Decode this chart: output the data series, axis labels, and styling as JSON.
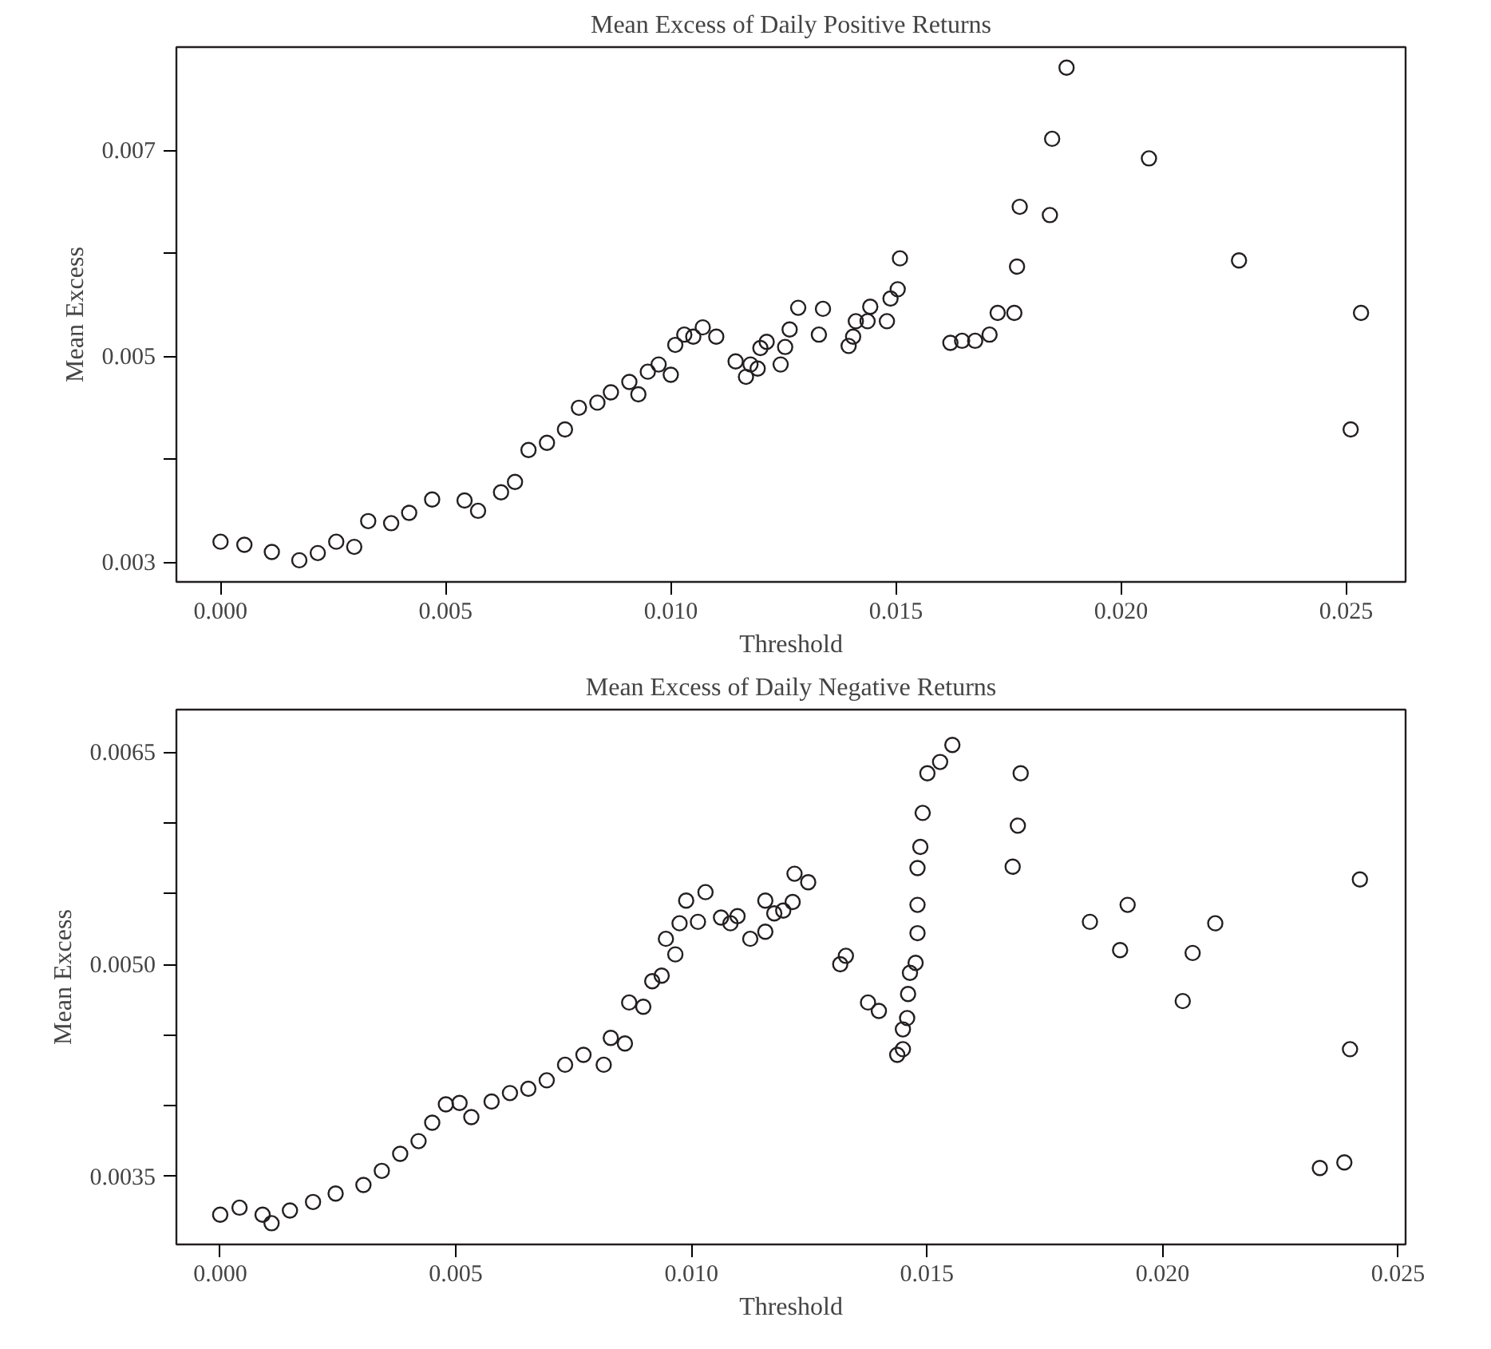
{
  "chart_data": [
    {
      "type": "scatter",
      "title": "Mean Excess of Daily Positive Returns",
      "xlabel": "Threshold",
      "ylabel": "Mean Excess",
      "marker": "circle",
      "grid": false,
      "color": "#231f20",
      "xlim": [
        -0.00098,
        0.02632
      ],
      "ylim": [
        0.00281,
        0.008
      ],
      "xticks": [
        {
          "value": 0,
          "label": "0.000"
        },
        0.005,
        {
          "value": 0.01,
          "label": "0.010"
        },
        0.015,
        {
          "value": 0.02,
          "label": "0.020"
        },
        0.025
      ],
      "yticks": [
        0.003,
        {
          "value": 0.004,
          "label": null
        },
        0.005,
        {
          "value": 0.006,
          "label": null
        },
        0.007
      ],
      "x": [
        0,
        0.00053,
        0.00114,
        0.00175,
        0.00216,
        0.00257,
        0.00297,
        0.00328,
        0.00379,
        0.00419,
        0.0047,
        0.00542,
        0.00572,
        0.00623,
        0.00654,
        0.00684,
        0.00725,
        0.00765,
        0.00796,
        0.00837,
        0.00867,
        0.00908,
        0.00928,
        0.00949,
        0.00973,
        0.01,
        0.0101,
        0.0103,
        0.0105,
        0.01071,
        0.01101,
        0.01144,
        0.01167,
        0.01177,
        0.01193,
        0.01199,
        0.01213,
        0.01244,
        0.01254,
        0.01264,
        0.01283,
        0.01329,
        0.01338,
        0.01395,
        0.01405,
        0.01411,
        0.01443,
        0.01437,
        0.0148,
        0.01488,
        0.01504,
        0.01509,
        0.01621,
        0.01647,
        0.01676,
        0.01708,
        0.01726,
        0.01763,
        0.01769,
        0.01775,
        0.01842,
        0.01847,
        0.01879,
        0.02062,
        0.02262,
        0.0251,
        0.02533
      ],
      "values": [
        0.0032,
        0.00317,
        0.0031,
        0.00302,
        0.00309,
        0.0032,
        0.00315,
        0.0034,
        0.00338,
        0.00348,
        0.00361,
        0.0036,
        0.0035,
        0.00368,
        0.00378,
        0.00409,
        0.00416,
        0.00429,
        0.0045,
        0.00455,
        0.00465,
        0.00475,
        0.00463,
        0.00485,
        0.00492,
        0.00482,
        0.00511,
        0.00521,
        0.00519,
        0.00528,
        0.00519,
        0.00495,
        0.0048,
        0.00492,
        0.00488,
        0.00508,
        0.00514,
        0.00492,
        0.00509,
        0.00526,
        0.00547,
        0.00521,
        0.00546,
        0.0051,
        0.00519,
        0.00534,
        0.00548,
        0.00534,
        0.00534,
        0.00556,
        0.00565,
        0.00595,
        0.00513,
        0.00515,
        0.00515,
        0.00521,
        0.00542,
        0.00542,
        0.00587,
        0.00645,
        0.00637,
        0.00711,
        0.0078,
        0.00692,
        0.00593,
        0.00429,
        0.00542
      ]
    },
    {
      "type": "scatter",
      "title": "Mean Excess of Daily Negative Returns",
      "xlabel": "Threshold",
      "ylabel": "Mean Excess",
      "marker": "circle",
      "grid": false,
      "color": "#231f20",
      "xlim": [
        -0.00093,
        0.02516
      ],
      "ylim": [
        0.00302,
        0.0068
      ],
      "xticks": [
        {
          "value": 0,
          "label": "0.000"
        },
        0.005,
        {
          "value": 0.01,
          "label": "0.010"
        },
        0.015,
        {
          "value": 0.02,
          "label": "0.020"
        },
        0.025
      ],
      "yticks": [
        0.0035,
        {
          "value": 0.004,
          "label": null
        },
        {
          "value": 0.0045,
          "label": null
        },
        {
          "value": 0.005,
          "label": "0.0050"
        },
        {
          "value": 0.0055,
          "label": null
        },
        {
          "value": 0.006,
          "label": null
        },
        0.0065
      ],
      "x": [
        0,
        0.00041,
        0.0009,
        0.00109,
        0.00148,
        0.00197,
        0.00245,
        0.00304,
        0.00343,
        0.00382,
        0.00421,
        0.0045,
        0.00479,
        0.00508,
        0.00533,
        0.00576,
        0.00615,
        0.00654,
        0.00693,
        0.00732,
        0.00771,
        0.00814,
        0.00829,
        0.00859,
        0.00868,
        0.00898,
        0.00917,
        0.00937,
        0.00946,
        0.00966,
        0.00975,
        0.00989,
        0.01014,
        0.0103,
        0.01063,
        0.01083,
        0.01098,
        0.01125,
        0.01157,
        0.01157,
        0.01176,
        0.01195,
        0.01215,
        0.01219,
        0.01248,
        0.01316,
        0.01328,
        0.01375,
        0.01398,
        0.01437,
        0.01449,
        0.01449,
        0.01458,
        0.0146,
        0.01464,
        0.01476,
        0.0148,
        0.0148,
        0.0148,
        0.01486,
        0.01491,
        0.01501,
        0.01528,
        0.01554,
        0.01682,
        0.01693,
        0.01699,
        0.01846,
        0.0191,
        0.01926,
        0.02043,
        0.02064,
        0.02112,
        0.02334,
        0.02386,
        0.02398,
        0.02419
      ],
      "values": [
        0.00323,
        0.00328,
        0.00323,
        0.00317,
        0.00326,
        0.00332,
        0.00338,
        0.00344,
        0.00354,
        0.00366,
        0.00375,
        0.00388,
        0.00401,
        0.00402,
        0.00392,
        0.00403,
        0.00409,
        0.00412,
        0.00418,
        0.00429,
        0.00436,
        0.00429,
        0.00448,
        0.00444,
        0.00473,
        0.0047,
        0.00488,
        0.00492,
        0.00518,
        0.00507,
        0.00529,
        0.00545,
        0.0053,
        0.00551,
        0.00533,
        0.00529,
        0.00534,
        0.00518,
        0.00523,
        0.00545,
        0.00536,
        0.00538,
        0.00544,
        0.00564,
        0.00558,
        0.005,
        0.00506,
        0.00473,
        0.00467,
        0.00436,
        0.0044,
        0.00454,
        0.00462,
        0.00479,
        0.00494,
        0.00501,
        0.00522,
        0.00542,
        0.00568,
        0.00583,
        0.00607,
        0.00635,
        0.00643,
        0.00655,
        0.00569,
        0.00598,
        0.00635,
        0.0053,
        0.0051,
        0.00542,
        0.00474,
        0.00508,
        0.00529,
        0.00356,
        0.0036,
        0.0044,
        0.0056
      ]
    }
  ]
}
